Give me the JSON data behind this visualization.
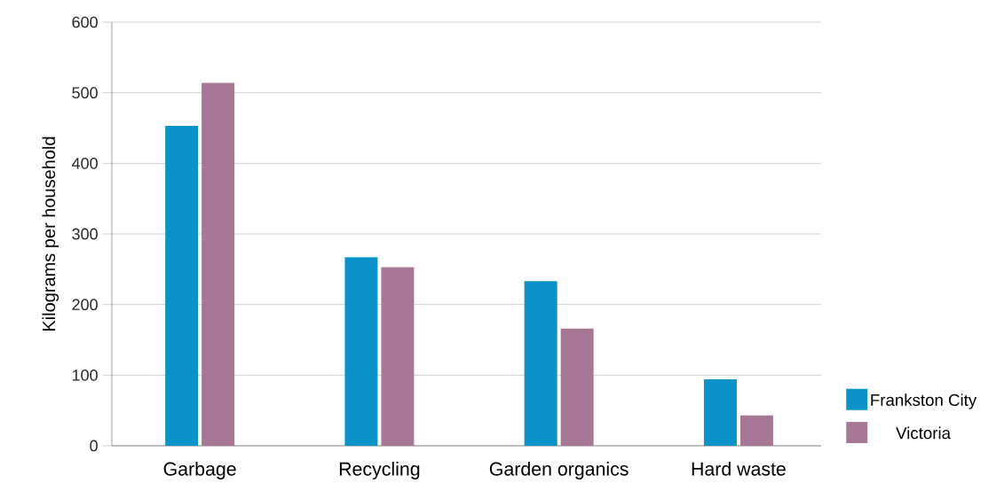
{
  "chart_data": {
    "type": "bar",
    "ylabel": "Kilograms per household",
    "categories": [
      "Garbage",
      "Recycling",
      "Garden organics",
      "Hard waste"
    ],
    "series": [
      {
        "name": "Frankston City",
        "color": "#0a92c9",
        "values": [
          453,
          267,
          233,
          94
        ]
      },
      {
        "name": "Victoria",
        "color": "#a77896",
        "values": [
          514,
          253,
          166,
          43
        ]
      }
    ],
    "ylim": [
      0,
      600
    ],
    "yticks": [
      0,
      100,
      200,
      300,
      400,
      500,
      600
    ],
    "grid": "y",
    "legend": "bottom right"
  }
}
